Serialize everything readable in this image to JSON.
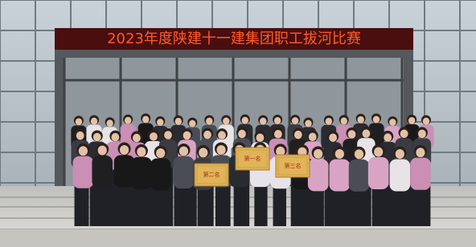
{
  "banner": {
    "title": "2023年度陕建十一建集团职工拔河比赛"
  },
  "certificates": [
    {
      "label": "第二名"
    },
    {
      "label": "第一名"
    },
    {
      "label": "第三名"
    }
  ]
}
